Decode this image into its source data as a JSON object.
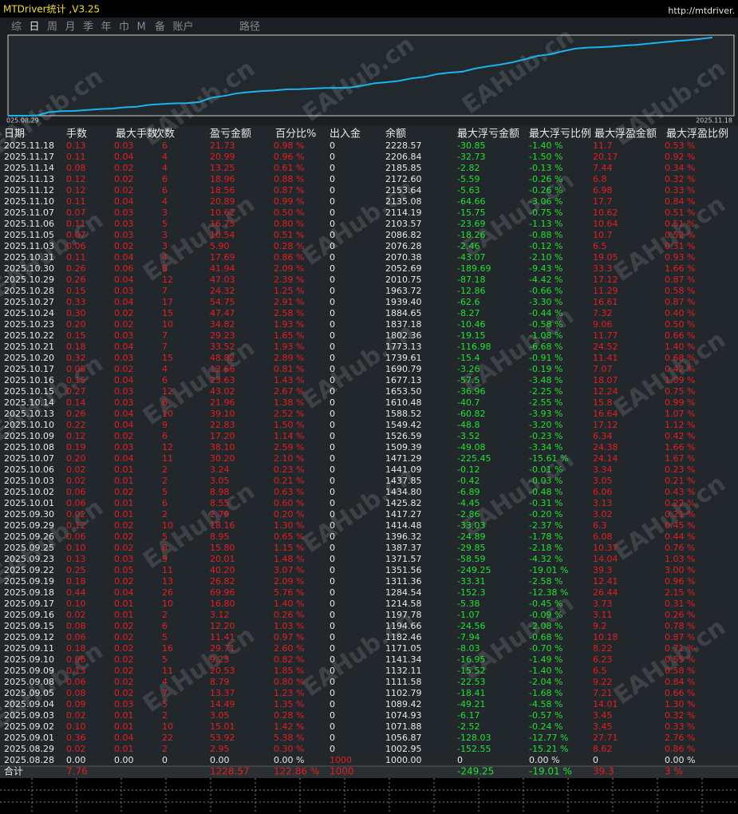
{
  "window": {
    "title": "MTDriver统计 ,V3.25",
    "url": "http://mtdriver."
  },
  "tabs": [
    "综",
    "日",
    "周",
    "月",
    "季",
    "年",
    "巾",
    "M",
    "备",
    "账户"
  ],
  "path_tab": "路径",
  "chart": {
    "x_start": "025.08.29",
    "x_end": "2025.11.18"
  },
  "watermark": "EAHub.cn",
  "table": {
    "columns": [
      "日期",
      "手数",
      "最大手数",
      "次数",
      "盈亏金额",
      "百分比%",
      "出入金",
      "余额",
      "最大浮亏金额",
      "最大浮亏比例",
      "最大浮盈金额",
      "最大浮盈比例"
    ],
    "rows": [
      [
        "2025.11.18",
        "0.13",
        "0.03",
        "6",
        "21.73",
        "0.98 %",
        "0",
        "2228.57",
        "-30.85",
        "-1.40 %",
        "11.7",
        "0.53 %"
      ],
      [
        "2025.11.17",
        "0.11",
        "0.04",
        "4",
        "20.99",
        "0.96 %",
        "0",
        "2206.84",
        "-32.73",
        "-1.50 %",
        "20.17",
        "0.92 %"
      ],
      [
        "2025.11.14",
        "0.08",
        "0.02",
        "4",
        "13.25",
        "0.61 %",
        "0",
        "2185.85",
        "-2.82",
        "-0.13 %",
        "7.44",
        "0.34 %"
      ],
      [
        "2025.11.13",
        "0.12",
        "0.02",
        "6",
        "18.96",
        "0.88 %",
        "0",
        "2172.60",
        "-5.59",
        "-0.26 %",
        "6.8",
        "0.32 %"
      ],
      [
        "2025.11.12",
        "0.12",
        "0.02",
        "6",
        "18.56",
        "0.87 %",
        "0",
        "2153.64",
        "-5.63",
        "-0.26 %",
        "6.98",
        "0.33 %"
      ],
      [
        "2025.11.10",
        "0.11",
        "0.04",
        "4",
        "20.89",
        "0.99 %",
        "0",
        "2135.08",
        "-64.66",
        "-3.06 %",
        "17.7",
        "0.84 %"
      ],
      [
        "2025.11.07",
        "0.07",
        "0.03",
        "3",
        "10.62",
        "0.50 %",
        "0",
        "2114.19",
        "-15.75",
        "-0.75 %",
        "10.62",
        "0.51 %"
      ],
      [
        "2025.11.06",
        "0.11",
        "0.03",
        "5",
        "16.75",
        "0.80 %",
        "0",
        "2103.57",
        "-23.69",
        "-1.13 %",
        "10.64",
        "0.51 %"
      ],
      [
        "2025.11.05",
        "0.07",
        "0.03",
        "3",
        "10.54",
        "0.51 %",
        "0",
        "2086.82",
        "-18.26",
        "-0.88 %",
        "10.7",
        "0.52 %"
      ],
      [
        "2025.11.03",
        "0.06",
        "0.02",
        "3",
        "5.90",
        "0.28 %",
        "0",
        "2076.28",
        "-2.46",
        "-0.12 %",
        "6.5",
        "0.31 %"
      ],
      [
        "2025.10.31",
        "0.11",
        "0.04",
        "4",
        "17.69",
        "0.86 %",
        "0",
        "2070.38",
        "-43.07",
        "-2.10 %",
        "19.05",
        "0.93 %"
      ],
      [
        "2025.10.30",
        "0.26",
        "0.06",
        "8",
        "41.94",
        "2.09 %",
        "0",
        "2052.69",
        "-189.69",
        "-9.43 %",
        "33.3",
        "1.66 %"
      ],
      [
        "2025.10.29",
        "0.26",
        "0.04",
        "12",
        "47.03",
        "2.39 %",
        "0",
        "2010.75",
        "-87.18",
        "-4.42 %",
        "17.12",
        "0.87 %"
      ],
      [
        "2025.10.28",
        "0.15",
        "0.03",
        "7",
        "24.32",
        "1.25 %",
        "0",
        "1963.72",
        "-12.86",
        "-0.66 %",
        "11.29",
        "0.58 %"
      ],
      [
        "2025.10.27",
        "0.33",
        "0.04",
        "17",
        "54.75",
        "2.91 %",
        "0",
        "1939.40",
        "-62.6",
        "-3.30 %",
        "16.61",
        "0.87 %"
      ],
      [
        "2025.10.24",
        "0.30",
        "0.02",
        "15",
        "47.47",
        "2.58 %",
        "0",
        "1884.65",
        "-8.27",
        "-0.44 %",
        "7.32",
        "0.40 %"
      ],
      [
        "2025.10.23",
        "0.20",
        "0.02",
        "10",
        "34.82",
        "1.93 %",
        "0",
        "1837.18",
        "-10.46",
        "-0.58 %",
        "9.06",
        "0.50 %"
      ],
      [
        "2025.10.22",
        "0.15",
        "0.03",
        "7",
        "29.23",
        "1.65 %",
        "0",
        "1802.36",
        "-19.15",
        "-1.08 %",
        "11.77",
        "0.66 %"
      ],
      [
        "2025.10.21",
        "0.18",
        "0.04",
        "7",
        "33.52",
        "1.93 %",
        "0",
        "1773.13",
        "-116.98",
        "-6.68 %",
        "24.52",
        "1.40 %"
      ],
      [
        "2025.10.20",
        "0.32",
        "0.03",
        "15",
        "48.82",
        "2.89 %",
        "0",
        "1739.61",
        "-15.4",
        "-0.91 %",
        "11.41",
        "0.68 %"
      ],
      [
        "2025.10.17",
        "0.08",
        "0.02",
        "4",
        "13.66",
        "0.81 %",
        "0",
        "1690.79",
        "-3.26",
        "-0.19 %",
        "7.07",
        "0.42 %"
      ],
      [
        "2025.10.16",
        "0.15",
        "0.04",
        "6",
        "23.63",
        "1.43 %",
        "0",
        "1677.13",
        "-57.5",
        "-3.48 %",
        "18.07",
        "1.09 %"
      ],
      [
        "2025.10.15",
        "0.27",
        "0.03",
        "12",
        "43.02",
        "2.67 %",
        "0",
        "1653.50",
        "-36.96",
        "-2.25 %",
        "12.24",
        "0.75 %"
      ],
      [
        "2025.10.14",
        "0.14",
        "0.03",
        "6",
        "21.96",
        "1.38 %",
        "0",
        "1610.48",
        "-40.7",
        "-2.55 %",
        "15.8",
        "0.99 %"
      ],
      [
        "2025.10.13",
        "0.26",
        "0.04",
        "10",
        "39.10",
        "2.52 %",
        "0",
        "1588.52",
        "-60.82",
        "-3.93 %",
        "16.64",
        "1.07 %"
      ],
      [
        "2025.10.10",
        "0.22",
        "0.04",
        "9",
        "22.83",
        "1.50 %",
        "0",
        "1549.42",
        "-48.8",
        "-3.20 %",
        "17.12",
        "1.12 %"
      ],
      [
        "2025.10.09",
        "0.12",
        "0.02",
        "6",
        "17.20",
        "1.14 %",
        "0",
        "1526.59",
        "-3.52",
        "-0.23 %",
        "6.34",
        "0.42 %"
      ],
      [
        "2025.10.08",
        "0.19",
        "0.03",
        "12",
        "38.10",
        "2.59 %",
        "0",
        "1509.39",
        "-49.08",
        "-3.34 %",
        "24.38",
        "1.66 %"
      ],
      [
        "2025.10.07",
        "0.20",
        "0.04",
        "11",
        "30.20",
        "2.10 %",
        "0",
        "1471.29",
        "-225.45",
        "-15.61 %",
        "24.14",
        "1.67 %"
      ],
      [
        "2025.10.06",
        "0.02",
        "0.01",
        "2",
        "3.24",
        "0.23 %",
        "0",
        "1441.09",
        "-0.12",
        "-0.01 %",
        "3.34",
        "0.23 %"
      ],
      [
        "2025.10.03",
        "0.02",
        "0.01",
        "2",
        "3.05",
        "0.21 %",
        "0",
        "1437.85",
        "-0.42",
        "-0.03 %",
        "3.05",
        "0.21 %"
      ],
      [
        "2025.10.02",
        "0.06",
        "0.02",
        "5",
        "8.98",
        "0.63 %",
        "0",
        "1434.80",
        "-6.89",
        "-0.48 %",
        "6.06",
        "0.43 %"
      ],
      [
        "2025.10.01",
        "0.06",
        "0.01",
        "6",
        "8.55",
        "0.60 %",
        "0",
        "1425.82",
        "-4.45",
        "-0.31 %",
        "3.13",
        "0.22 %"
      ],
      [
        "2025.09.30",
        "0.02",
        "0.01",
        "2",
        "2.79",
        "0.20 %",
        "0",
        "1417.27",
        "-2.86",
        "-0.20 %",
        "3.02",
        "0.21 %"
      ],
      [
        "2025.09.29",
        "0.12",
        "0.02",
        "10",
        "18.16",
        "1.30 %",
        "0",
        "1414.48",
        "-33.03",
        "-2.37 %",
        "6.3",
        "0.45 %"
      ],
      [
        "2025.09.26",
        "0.06",
        "0.02",
        "5",
        "8.95",
        "0.65 %",
        "0",
        "1396.32",
        "-24.89",
        "-1.78 %",
        "6.08",
        "0.44 %"
      ],
      [
        "2025.09.25",
        "0.10",
        "0.02",
        "8",
        "15.80",
        "1.15 %",
        "0",
        "1387.37",
        "-29.85",
        "-2.18 %",
        "10.37",
        "0.76 %"
      ],
      [
        "2025.09.23",
        "0.13",
        "0.03",
        "9",
        "20.01",
        "1.48 %",
        "0",
        "1371.57",
        "-58.59",
        "-4.32 %",
        "14.04",
        "1.03 %"
      ],
      [
        "2025.09.22",
        "0.25",
        "0.05",
        "11",
        "40.20",
        "3.07 %",
        "0",
        "1351.56",
        "-249.25",
        "-19.01 %",
        "39.3",
        "3.00 %"
      ],
      [
        "2025.09.19",
        "0.18",
        "0.02",
        "13",
        "26.82",
        "2.09 %",
        "0",
        "1311.36",
        "-33.31",
        "-2.58 %",
        "12.41",
        "0.96 %"
      ],
      [
        "2025.09.18",
        "0.44",
        "0.04",
        "26",
        "69.96",
        "5.76 %",
        "0",
        "1284.54",
        "-152.3",
        "-12.38 %",
        "26.44",
        "2.15 %"
      ],
      [
        "2025.09.17",
        "0.10",
        "0.01",
        "10",
        "16.80",
        "1.40 %",
        "0",
        "1214.58",
        "-5.38",
        "-0.45 %",
        "3.73",
        "0.31 %"
      ],
      [
        "2025.09.16",
        "0.02",
        "0.01",
        "2",
        "3.12",
        "0.26 %",
        "0",
        "1197.78",
        "-1.07",
        "-0.09 %",
        "3.11",
        "0.26 %"
      ],
      [
        "2025.09.15",
        "0.08",
        "0.02",
        "6",
        "12.20",
        "1.03 %",
        "0",
        "1194.66",
        "-24.56",
        "-2.08 %",
        "9.2",
        "0.78 %"
      ],
      [
        "2025.09.12",
        "0.06",
        "0.02",
        "5",
        "11.41",
        "0.97 %",
        "0",
        "1182.46",
        "-7.94",
        "-0.68 %",
        "10.18",
        "0.87 %"
      ],
      [
        "2025.09.11",
        "0.18",
        "0.02",
        "16",
        "29.71",
        "2.60 %",
        "0",
        "1171.05",
        "-8.03",
        "-0.70 %",
        "8.22",
        "0.71 %"
      ],
      [
        "2025.09.10",
        "0.06",
        "0.02",
        "5",
        "9.23",
        "0.82 %",
        "0",
        "1141.34",
        "-16.95",
        "-1.49 %",
        "6.23",
        "0.55 %"
      ],
      [
        "2025.09.09",
        "0.13",
        "0.02",
        "11",
        "20.53",
        "1.85 %",
        "0",
        "1132.11",
        "-15.52",
        "-1.40 %",
        "6.5",
        "0.58 %"
      ],
      [
        "2025.09.08",
        "0.06",
        "0.02",
        "4",
        "8.79",
        "0.80 %",
        "0",
        "1111.58",
        "-22.53",
        "-2.04 %",
        "9.22",
        "0.84 %"
      ],
      [
        "2025.09.05",
        "0.08",
        "0.02",
        "7",
        "13.37",
        "1.23 %",
        "0",
        "1102.79",
        "-18.41",
        "-1.68 %",
        "7.21",
        "0.66 %"
      ],
      [
        "2025.09.04",
        "0.09",
        "0.03",
        "5",
        "14.49",
        "1.35 %",
        "0",
        "1089.42",
        "-49.21",
        "-4.58 %",
        "14.01",
        "1.30 %"
      ],
      [
        "2025.09.03",
        "0.02",
        "0.01",
        "2",
        "3.05",
        "0.28 %",
        "0",
        "1074.93",
        "-6.17",
        "-0.57 %",
        "3.45",
        "0.32 %"
      ],
      [
        "2025.09.02",
        "0.10",
        "0.01",
        "10",
        "15.01",
        "1.42 %",
        "0",
        "1071.88",
        "-2.52",
        "-0.24 %",
        "3.45",
        "0.33 %"
      ],
      [
        "2025.09.01",
        "0.36",
        "0.04",
        "22",
        "53.92",
        "5.38 %",
        "0",
        "1056.87",
        "-128.03",
        "-12.77 %",
        "27.71",
        "2.76 %"
      ],
      [
        "2025.08.29",
        "0.02",
        "0.01",
        "2",
        "2.95",
        "0.30 %",
        "0",
        "1002.95",
        "-152.55",
        "-15.21 %",
        "8.62",
        "0.86 %"
      ],
      [
        "2025.08.28",
        "0.00",
        "0.00",
        "0",
        "0.00",
        "0.00 %",
        "1000",
        "1000.00",
        "0",
        "0.00 %",
        "0",
        "0.00 %"
      ]
    ],
    "total": [
      "合计",
      "7.76",
      null,
      null,
      "1228.57",
      "122.86 %",
      "1000",
      null,
      "-249.25",
      "-19.01 %",
      "39.3",
      "3 %"
    ]
  }
}
